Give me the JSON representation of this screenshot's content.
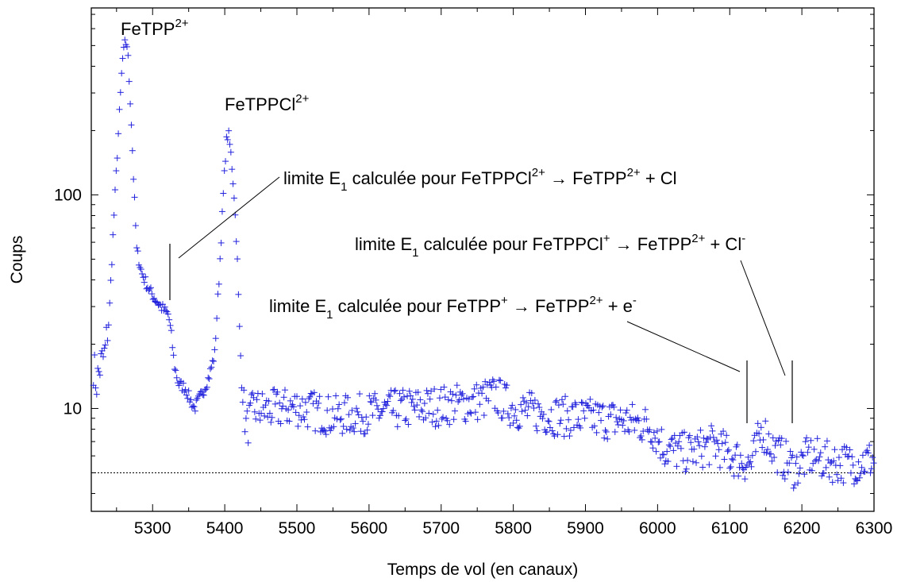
{
  "chart_data": {
    "type": "scatter",
    "marker": "plus",
    "marker_color": "#2222dd",
    "xlabel": "Temps de vol (en canaux)",
    "ylabel": "Coups",
    "xlim": [
      5215,
      6300
    ],
    "ylim": [
      3.3,
      750
    ],
    "yscale": "log",
    "grid": false,
    "x_ticks": [
      5300,
      5400,
      5500,
      5600,
      5700,
      5800,
      5900,
      6000,
      6100,
      6200,
      6300
    ],
    "x_tick_labels": [
      "5300",
      "5400",
      "5500",
      "5600",
      "5700",
      "5800",
      "5900",
      "6000",
      "6100",
      "6200",
      "6300"
    ],
    "y_ticks": [
      10,
      100
    ],
    "y_tick_labels": [
      "10",
      "100"
    ],
    "baseline": {
      "y": 5.0,
      "style": "dotted"
    },
    "profile": [
      [
        5218,
        16
      ],
      [
        5222,
        13
      ],
      [
        5228,
        16
      ],
      [
        5234,
        18
      ],
      [
        5240,
        28
      ],
      [
        5246,
        75
      ],
      [
        5252,
        180
      ],
      [
        5258,
        420
      ],
      [
        5262,
        520
      ],
      [
        5265,
        500
      ],
      [
        5270,
        240
      ],
      [
        5274,
        110
      ],
      [
        5278,
        55
      ],
      [
        5285,
        43
      ],
      [
        5295,
        36
      ],
      [
        5305,
        32
      ],
      [
        5315,
        29
      ],
      [
        5322,
        27.5
      ],
      [
        5326,
        22
      ],
      [
        5330,
        16
      ],
      [
        5336,
        13
      ],
      [
        5345,
        12.5
      ],
      [
        5352,
        11
      ],
      [
        5358,
        10
      ],
      [
        5364,
        11
      ],
      [
        5370,
        12
      ],
      [
        5378,
        14
      ],
      [
        5386,
        18
      ],
      [
        5392,
        40
      ],
      [
        5398,
        100
      ],
      [
        5402,
        175
      ],
      [
        5405,
        195
      ],
      [
        5409,
        150
      ],
      [
        5413,
        100
      ],
      [
        5417,
        55
      ],
      [
        5420,
        26
      ],
      [
        5424,
        12
      ],
      [
        5430,
        8
      ],
      [
        5440,
        10
      ],
      [
        5460,
        9.8
      ],
      [
        5500,
        10.2
      ],
      [
        5550,
        9.2
      ],
      [
        5600,
        9.5
      ],
      [
        5650,
        10
      ],
      [
        5700,
        10.3
      ],
      [
        5750,
        10.8
      ],
      [
        5775,
        11.5
      ],
      [
        5800,
        10
      ],
      [
        5850,
        9.3
      ],
      [
        5900,
        9
      ],
      [
        5950,
        8.8
      ],
      [
        5990,
        8.3
      ],
      [
        6010,
        6.5
      ],
      [
        6040,
        6.2
      ],
      [
        6080,
        6.8
      ],
      [
        6100,
        6
      ],
      [
        6130,
        5.5
      ],
      [
        6145,
        8
      ],
      [
        6160,
        6.5
      ],
      [
        6175,
        5.8
      ],
      [
        6190,
        5.2
      ],
      [
        6210,
        6
      ],
      [
        6240,
        5.6
      ],
      [
        6270,
        5.5
      ],
      [
        6300,
        5.8
      ]
    ],
    "peak_labels": [
      {
        "species": "FeTPP",
        "charge": "2+",
        "x": 5262,
        "y": 520
      },
      {
        "species": "FeTPPCl",
        "charge": "2+",
        "x": 5405,
        "y": 195
      }
    ],
    "annotations": [
      {
        "text": [
          "limite E",
          "1",
          " calculée pour FeTPPCl",
          "2+",
          " → FeTPP",
          "2+",
          " + Cl"
        ],
        "marker_x": 5330,
        "marker_y_range": [
          28,
          48
        ]
      },
      {
        "text": [
          "limite E",
          "1",
          " calculée pour FeTPPCl",
          "+",
          " → FeTPP",
          "2+",
          " + Cl",
          "-"
        ],
        "marker_x": 6190,
        "marker_y_range": [
          7.8,
          14
        ]
      },
      {
        "text": [
          "limite E",
          "1",
          " calculée pour FeTPP",
          "+",
          " → FeTPP",
          "2+",
          "  +  e",
          "-"
        ],
        "marker_x": 6130,
        "marker_y_range": [
          7.8,
          14
        ]
      }
    ]
  }
}
